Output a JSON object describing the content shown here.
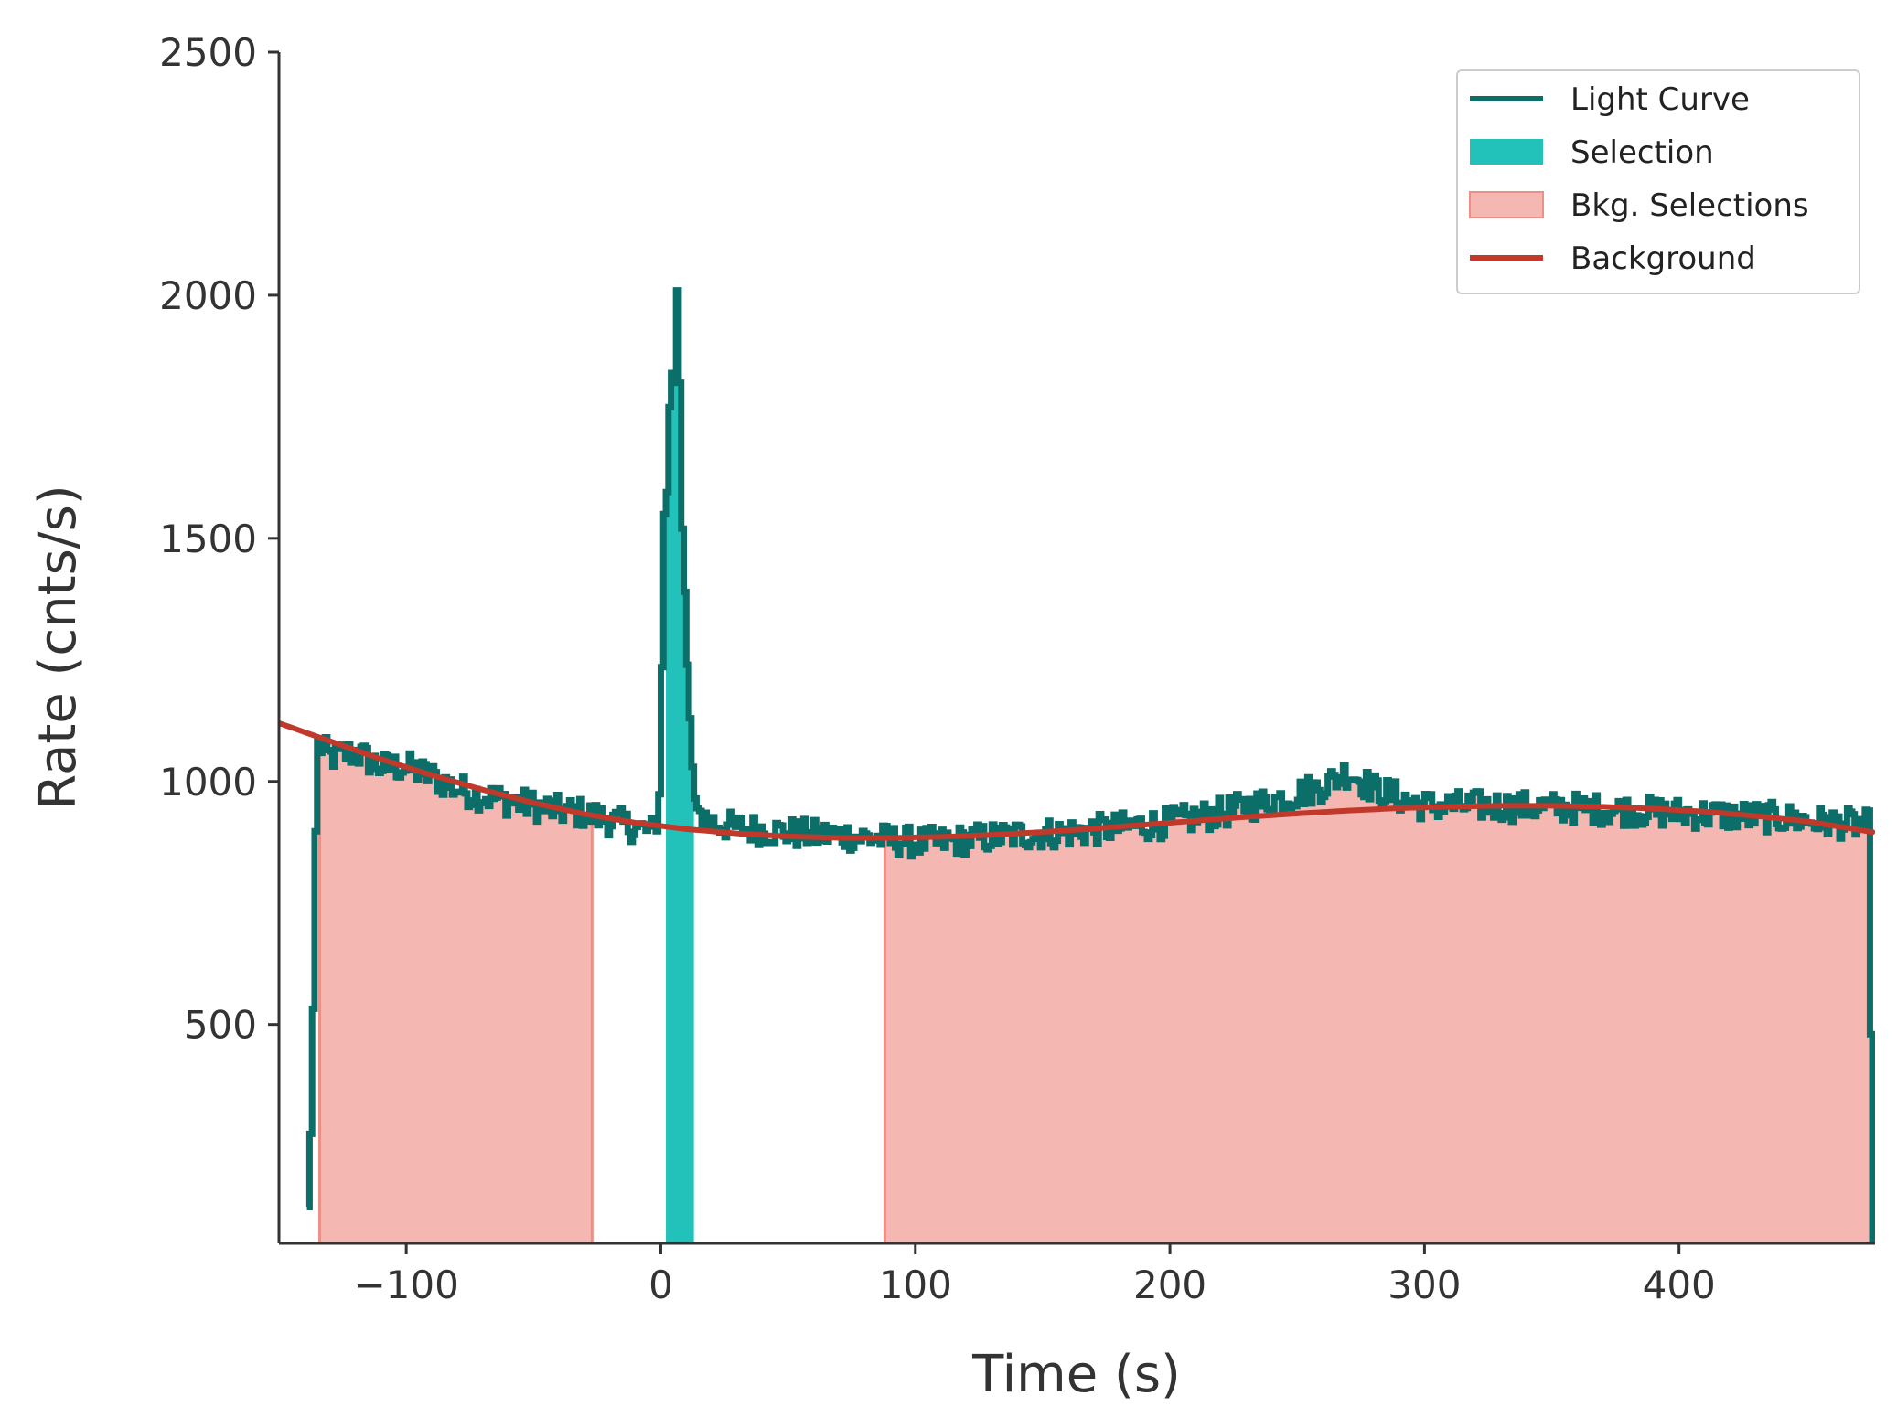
{
  "chart_data": {
    "type": "line",
    "title": "",
    "xlabel": "Time (s)",
    "ylabel": "Rate (cnts/s)",
    "xlim": [
      -150,
      477
    ],
    "ylim": [
      50,
      2500
    ],
    "x_ticks": [
      -100,
      0,
      100,
      200,
      300,
      400
    ],
    "x_tick_labels": [
      "−100",
      "0",
      "100",
      "200",
      "300",
      "400"
    ],
    "y_ticks": [
      500,
      1000,
      1500,
      2000,
      2500
    ],
    "y_tick_labels": [
      "500",
      "1000",
      "1500",
      "2000",
      "2500"
    ],
    "grid": false,
    "legend_position": "top-right",
    "colors": {
      "light_curve": "#0b6e69",
      "selection": "#22c1b9",
      "bkg_fill": "#f5b7b1",
      "bkg_edge": "#ec8f86",
      "background": "#c0392b",
      "axis": "#333333"
    },
    "legend": [
      {
        "label": "Light Curve",
        "kind": "line",
        "series": "light_curve"
      },
      {
        "label": "Selection",
        "kind": "patch",
        "series": "selection"
      },
      {
        "label": "Bkg. Selections",
        "kind": "patch",
        "series": "bkg"
      },
      {
        "label": "Background",
        "kind": "line",
        "series": "background"
      }
    ],
    "light_curve_keypoints": {
      "x": [
        -139,
        -137,
        -135,
        -130,
        -120,
        -110,
        -100,
        -90,
        -80,
        -70,
        -60,
        -50,
        -40,
        -30,
        -20,
        -10,
        -2,
        0,
        1,
        2,
        3,
        4,
        5,
        6,
        7,
        8,
        9,
        10,
        11,
        12,
        13,
        14,
        16,
        20,
        30,
        40,
        50,
        60,
        70,
        80,
        90,
        100,
        110,
        120,
        140,
        160,
        180,
        200,
        220,
        240,
        260,
        270,
        280,
        300,
        320,
        340,
        360,
        380,
        400,
        420,
        440,
        460,
        475,
        476
      ],
      "y": [
        50,
        350,
        1080,
        1050,
        1060,
        1030,
        1030,
        1010,
        985,
        970,
        960,
        950,
        940,
        935,
        920,
        905,
        895,
        1000,
        1470,
        1630,
        1560,
        1980,
        1700,
        1940,
        2080,
        1560,
        1480,
        1300,
        1180,
        1080,
        980,
        950,
        930,
        915,
        905,
        900,
        895,
        890,
        890,
        885,
        880,
        875,
        875,
        880,
        890,
        895,
        905,
        915,
        935,
        960,
        990,
        1020,
        985,
        950,
        950,
        948,
        945,
        940,
        935,
        930,
        925,
        915,
        910,
        50
      ],
      "noise_amplitude": 32,
      "bin_width_s": 1
    },
    "selection": {
      "x_start": 2,
      "x_end": 13
    },
    "bkg_selections": [
      {
        "x_start": -134,
        "x_end": -27
      },
      {
        "x_start": 88,
        "x_end": 475
      }
    ],
    "background_curve": {
      "x": [
        -150,
        -130,
        -110,
        -90,
        -70,
        -50,
        -30,
        -10,
        10,
        30,
        50,
        70,
        90,
        110,
        130,
        150,
        170,
        190,
        210,
        230,
        250,
        270,
        290,
        310,
        330,
        350,
        370,
        390,
        410,
        430,
        450,
        477
      ],
      "y": [
        1120,
        1083,
        1046,
        1013,
        983,
        956,
        933,
        915,
        902,
        893,
        887,
        884,
        884,
        886,
        890,
        896,
        903,
        911,
        919,
        927,
        934,
        940,
        945,
        948,
        950,
        950,
        948,
        944,
        938,
        929,
        918,
        895
      ]
    }
  }
}
